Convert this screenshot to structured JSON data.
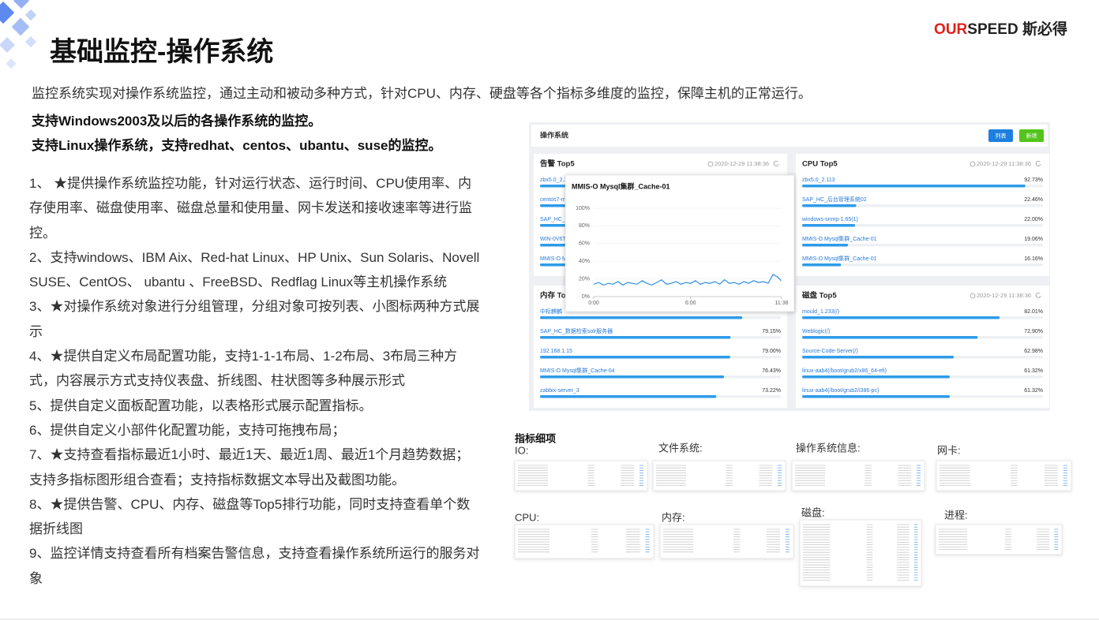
{
  "header": {
    "title": "基础监控-操作系统",
    "brand_red": "OUR",
    "brand_dark": "SPEED",
    "brand_cn": "斯必得"
  },
  "intro": {
    "text": "监控系统实现对操作系统监控，通过主动和被动多种方式，针对CPU、内存、硬盘等各个指标多维度的监控，保障主机的正常运行。",
    "bold": [
      "支持Windows2003及以后的各操作系统的监控。",
      "支持Linux操作系统，支持redhat、centos、ubantu、suse的监控。"
    ]
  },
  "features": [
    "1、 ★提供操作系统监控功能，针对运行状态、运行时间、CPU使用率、内存使用率、磁盘使用率、磁盘总量和使用量、网卡发送和接收速率等进行监控。",
    "2、支持windows、IBM Aix、Red-hat Linux、HP Unix、Sun Solaris、Novell SUSE、CentOS、 ubantu 、FreeBSD、Redflag Linux等主机操作系统",
    "3、★对操作系统对象进行分组管理，分组对象可按列表、小图标两种方式展示",
    "4、★提供自定义布局配置功能，支持1-1-1布局、1-2布局、3布局三种方式，内容展示方式支持仪表盘、折线图、柱状图等多种展示形式",
    "5、提供自定义面板配置功能，以表格形式展示配置指标。",
    "6、提供自定义小部件化配置功能，支持可拖拽布局；",
    "7、★支持查看指标最近1小时、最近1天、最近1周、最近1个月趋势数据；支持多指标图形组合查看；支持指标数据文本导出及截图功能。",
    "8、★提供告警、CPU、内存、磁盘等Top5排行功能，同时支持查看单个数据折线图",
    "9、监控详情支持查看所有档案告警信息，支持查看操作系统所运行的服务对象"
  ],
  "dashboard": {
    "title": "操作系统",
    "buttons": [
      "列表",
      "新增"
    ],
    "panels": [
      {
        "title": "告警 Top5",
        "time": "2020-12-29 11:38:36",
        "names": [
          "zbx5.0_2.1",
          "centos7-m",
          "SAP_HC_数",
          "WIN-0V6T",
          "MMIS-O M"
        ]
      },
      {
        "title": "CPU Top5",
        "time": "2020-12-29 11:38:36",
        "names": [
          "zbx5.0_2.113",
          "SAP_HC_后台管理系统02",
          "windows-snmp-1.65(1)",
          "MMIS-O Mysql集群_Cache-01",
          "MMIS-O Mysql集群_Cache-01"
        ],
        "values": [
          92.73,
          22.46,
          22.0,
          19.06,
          16.16
        ],
        "value_labels": [
          "92.73%",
          "22.46%",
          "22.00%",
          "19.06%",
          "16.16%"
        ]
      },
      {
        "title": "内存 To",
        "names": [
          "中标麒麟",
          "SAP_HC_数据检索solr服务器",
          "192.168.1.15",
          "MMIS-O Mysql集群_Cache-04",
          "zabbix-server_3"
        ],
        "values": [
          84,
          79.15,
          79.0,
          76.43,
          73.22
        ],
        "value_labels": [
          null,
          "79.15%",
          "79.00%",
          "76.43%",
          "73.22%"
        ]
      },
      {
        "title": "磁盘 Top5",
        "time": "2020-12-29 11:38:36",
        "names": [
          "mould_1.233(/)",
          "Weblogic(/)",
          "Source-Code-Server(/)",
          "linux-aab4(/boot/grub2/x86_64-efi)",
          "linux-aab4(/boot/grub2/i386-pc)"
        ],
        "values": [
          82.01,
          72.9,
          62.98,
          61.32,
          61.32
        ],
        "value_labels": [
          "82.01%",
          "72.90%",
          "62.98%",
          "61.32%",
          "61.32%"
        ]
      }
    ],
    "popup": {
      "title": "MMIS-O Mysql集群_Cache-01",
      "ylim": [
        0,
        100
      ],
      "xlim": [
        0,
        11.633
      ],
      "yticks": [
        {
          "value": 0,
          "label": "0%"
        },
        {
          "value": 20,
          "label": "20%"
        },
        {
          "value": 40,
          "label": "40%"
        },
        {
          "value": 60,
          "label": "60%"
        },
        {
          "value": 80,
          "label": "80%"
        },
        {
          "value": 100,
          "label": "100%"
        }
      ],
      "xticks": [
        {
          "value": 0,
          "label": "0:00"
        },
        {
          "value": 6,
          "label": "6:00"
        },
        {
          "value": 11.633,
          "label": "11:38"
        }
      ],
      "x": [
        0,
        0.3,
        0.6,
        0.9,
        1.2,
        1.5,
        1.8,
        2.1,
        2.4,
        2.7,
        3,
        3.3,
        3.6,
        3.9,
        4.2,
        4.5,
        4.8,
        5.1,
        5.4,
        5.7,
        6,
        6.3,
        6.6,
        6.9,
        7.2,
        7.5,
        7.8,
        8.1,
        8.4,
        8.7,
        9,
        9.3,
        9.6,
        9.9,
        10.2,
        10.5,
        10.8,
        11.1,
        11.4,
        11.6
      ],
      "values": [
        14,
        16,
        13,
        15,
        14,
        17,
        13,
        16,
        15,
        14,
        18,
        15,
        13,
        16,
        19,
        14,
        15,
        17,
        14,
        16,
        15,
        18,
        14,
        16,
        15,
        17,
        14,
        19,
        15,
        16,
        14,
        17,
        15,
        18,
        16,
        17,
        15,
        25,
        22,
        18
      ],
      "color": "#2f8de4"
    }
  },
  "details": {
    "title": "指标细项",
    "thumbnails": [
      "IO:",
      "文件系统:",
      "操作系统信息:",
      "网卡:",
      "CPU:",
      "内存:",
      "磁盘:",
      "进程:"
    ]
  }
}
